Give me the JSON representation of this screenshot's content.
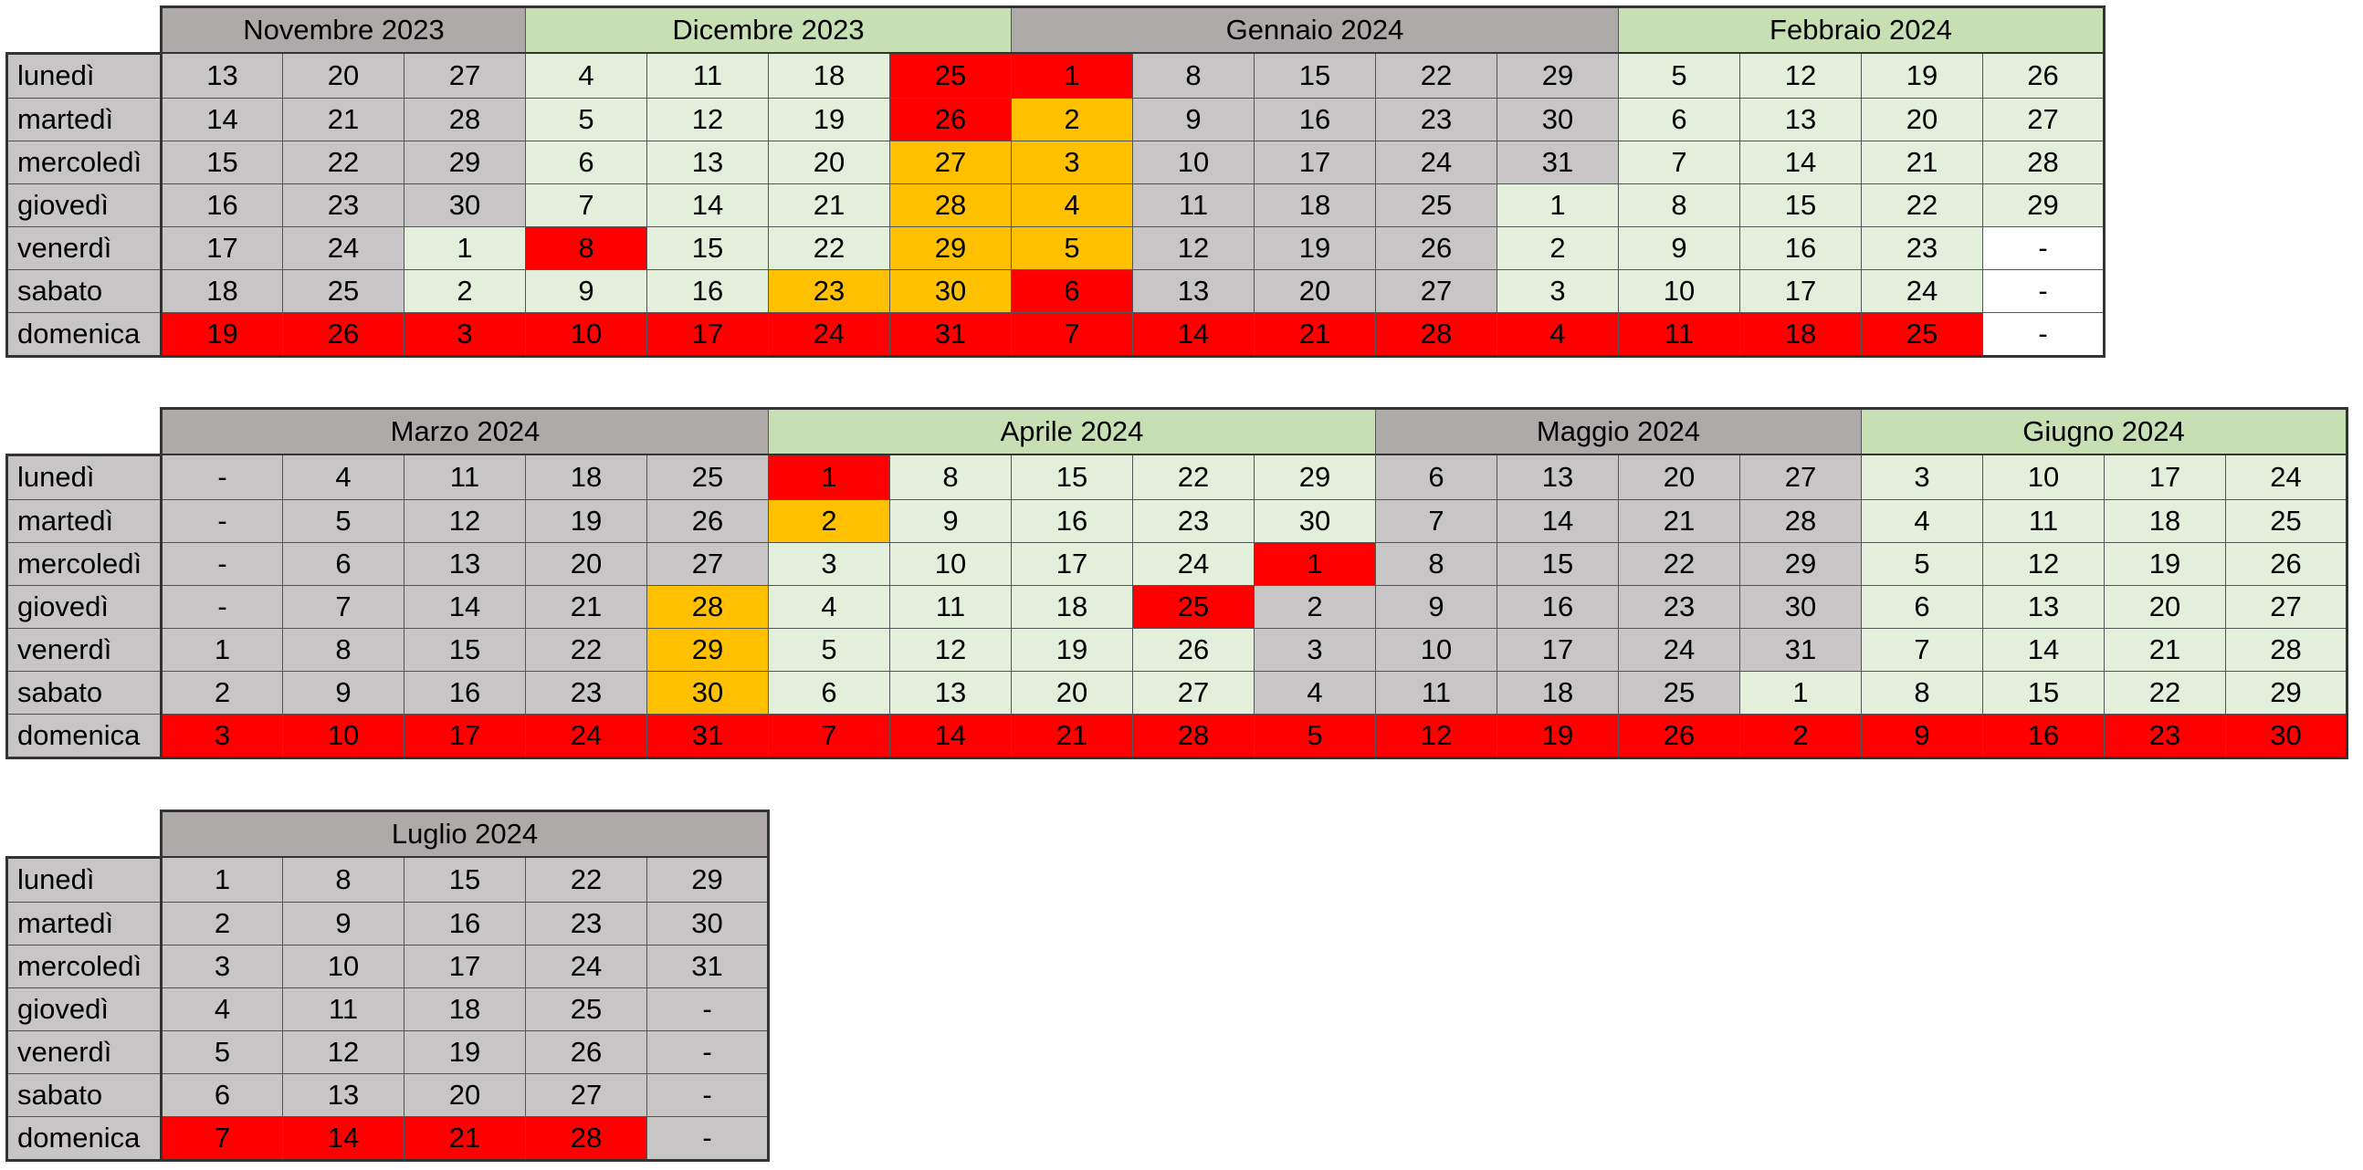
{
  "colors": {
    "month_header_gray": "#aeaaaa",
    "month_header_green": "#c6e0b4",
    "cell_gray": "#c7c5c6",
    "cell_green": "#e2efda",
    "holiday_red": "#ff0000",
    "vacation_orange": "#ffc000",
    "empty_white": "#ffffff"
  },
  "day_labels": [
    "lunedì",
    "martedì",
    "mercoledì",
    "giovedì",
    "venerdì",
    "sabato",
    "domenica"
  ],
  "tables": [
    {
      "id": "table-1",
      "months": [
        {
          "name": "Novembre 2023",
          "theme": "gray",
          "rows": [
            [
              "13",
              "20",
              "27"
            ],
            [
              "14",
              "21",
              "28"
            ],
            [
              "15",
              "22",
              "29"
            ],
            [
              "16",
              "23",
              "30"
            ],
            [
              "17",
              "24",
              "1"
            ],
            [
              "18",
              "25",
              "2"
            ],
            [
              "19",
              "26",
              "3"
            ]
          ],
          "colors": [
            [
              "",
              "",
              ""
            ],
            [
              "",
              "",
              ""
            ],
            [
              "",
              "",
              ""
            ],
            [
              "",
              "",
              ""
            ],
            [
              "",
              "",
              "green"
            ],
            [
              "",
              "",
              "green"
            ],
            [
              "red",
              "red",
              "red"
            ]
          ]
        },
        {
          "name": "Dicembre 2023",
          "theme": "green",
          "rows": [
            [
              "4",
              "11",
              "18",
              "25"
            ],
            [
              "5",
              "12",
              "19",
              "26"
            ],
            [
              "6",
              "13",
              "20",
              "27"
            ],
            [
              "7",
              "14",
              "21",
              "28"
            ],
            [
              "8",
              "15",
              "22",
              "29"
            ],
            [
              "9",
              "16",
              "23",
              "30"
            ],
            [
              "10",
              "17",
              "24",
              "31"
            ]
          ],
          "colors": [
            [
              "",
              "",
              "",
              "red"
            ],
            [
              "",
              "",
              "",
              "red"
            ],
            [
              "",
              "",
              "",
              "orange"
            ],
            [
              "",
              "",
              "",
              "orange"
            ],
            [
              "red",
              "",
              "",
              "orange"
            ],
            [
              "",
              "",
              "orange",
              "orange"
            ],
            [
              "red",
              "red",
              "red",
              "red"
            ]
          ]
        },
        {
          "name": "Gennaio 2024",
          "theme": "gray",
          "rows": [
            [
              "1",
              "8",
              "15",
              "22",
              "29"
            ],
            [
              "2",
              "9",
              "16",
              "23",
              "30"
            ],
            [
              "3",
              "10",
              "17",
              "24",
              "31"
            ],
            [
              "4",
              "11",
              "18",
              "25",
              "1"
            ],
            [
              "5",
              "12",
              "19",
              "26",
              "2"
            ],
            [
              "6",
              "13",
              "20",
              "27",
              "3"
            ],
            [
              "7",
              "14",
              "21",
              "28",
              "4"
            ]
          ],
          "colors": [
            [
              "red",
              "",
              "",
              "",
              ""
            ],
            [
              "orange",
              "",
              "",
              "",
              ""
            ],
            [
              "orange",
              "",
              "",
              "",
              ""
            ],
            [
              "orange",
              "",
              "",
              "",
              "green"
            ],
            [
              "orange",
              "",
              "",
              "",
              "green"
            ],
            [
              "red",
              "",
              "",
              "",
              "green"
            ],
            [
              "red",
              "red",
              "red",
              "red",
              "red"
            ]
          ]
        },
        {
          "name": "Febbraio 2024",
          "theme": "green",
          "rows": [
            [
              "5",
              "12",
              "19",
              "26"
            ],
            [
              "6",
              "13",
              "20",
              "27"
            ],
            [
              "7",
              "14",
              "21",
              "28"
            ],
            [
              "8",
              "15",
              "22",
              "29"
            ],
            [
              "9",
              "16",
              "23",
              "-"
            ],
            [
              "10",
              "17",
              "24",
              "-"
            ],
            [
              "11",
              "18",
              "25",
              "-"
            ]
          ],
          "colors": [
            [
              "",
              "",
              "",
              ""
            ],
            [
              "",
              "",
              "",
              ""
            ],
            [
              "",
              "",
              "",
              ""
            ],
            [
              "",
              "",
              "",
              ""
            ],
            [
              "",
              "",
              "",
              "white"
            ],
            [
              "",
              "",
              "",
              "white"
            ],
            [
              "red",
              "red",
              "red",
              "white"
            ]
          ]
        }
      ]
    },
    {
      "id": "table-2",
      "months": [
        {
          "name": "Marzo 2024",
          "theme": "gray",
          "rows": [
            [
              "-",
              "4",
              "11",
              "18",
              "25"
            ],
            [
              "-",
              "5",
              "12",
              "19",
              "26"
            ],
            [
              "-",
              "6",
              "13",
              "20",
              "27"
            ],
            [
              "-",
              "7",
              "14",
              "21",
              "28"
            ],
            [
              "1",
              "8",
              "15",
              "22",
              "29"
            ],
            [
              "2",
              "9",
              "16",
              "23",
              "30"
            ],
            [
              "3",
              "10",
              "17",
              "24",
              "31"
            ]
          ],
          "colors": [
            [
              "",
              "",
              "",
              "",
              ""
            ],
            [
              "",
              "",
              "",
              "",
              ""
            ],
            [
              "",
              "",
              "",
              "",
              ""
            ],
            [
              "",
              "",
              "",
              "",
              "orange"
            ],
            [
              "",
              "",
              "",
              "",
              "orange"
            ],
            [
              "",
              "",
              "",
              "",
              "orange"
            ],
            [
              "red",
              "red",
              "red",
              "red",
              "red"
            ]
          ]
        },
        {
          "name": "Aprile 2024",
          "theme": "green",
          "rows": [
            [
              "1",
              "8",
              "15",
              "22",
              "29"
            ],
            [
              "2",
              "9",
              "16",
              "23",
              "30"
            ],
            [
              "3",
              "10",
              "17",
              "24",
              "1"
            ],
            [
              "4",
              "11",
              "18",
              "25",
              "2"
            ],
            [
              "5",
              "12",
              "19",
              "26",
              "3"
            ],
            [
              "6",
              "13",
              "20",
              "27",
              "4"
            ],
            [
              "7",
              "14",
              "21",
              "28",
              "5"
            ]
          ],
          "colors": [
            [
              "red",
              "",
              "",
              "",
              ""
            ],
            [
              "orange",
              "",
              "",
              "",
              ""
            ],
            [
              "",
              "",
              "",
              "",
              "red"
            ],
            [
              "",
              "",
              "",
              "red",
              "gray"
            ],
            [
              "",
              "",
              "",
              "",
              "gray"
            ],
            [
              "",
              "",
              "",
              "",
              "gray"
            ],
            [
              "red",
              "red",
              "red",
              "red",
              "red"
            ]
          ]
        },
        {
          "name": "Maggio 2024",
          "theme": "gray",
          "rows": [
            [
              "6",
              "13",
              "20",
              "27"
            ],
            [
              "7",
              "14",
              "21",
              "28"
            ],
            [
              "8",
              "15",
              "22",
              "29"
            ],
            [
              "9",
              "16",
              "23",
              "30"
            ],
            [
              "10",
              "17",
              "24",
              "31"
            ],
            [
              "11",
              "18",
              "25",
              "1"
            ],
            [
              "12",
              "19",
              "26",
              "2"
            ]
          ],
          "colors": [
            [
              "",
              "",
              "",
              ""
            ],
            [
              "",
              "",
              "",
              ""
            ],
            [
              "",
              "",
              "",
              ""
            ],
            [
              "",
              "",
              "",
              ""
            ],
            [
              "",
              "",
              "",
              ""
            ],
            [
              "",
              "",
              "",
              "green"
            ],
            [
              "red",
              "red",
              "red",
              "red"
            ]
          ]
        },
        {
          "name": "Giugno 2024",
          "theme": "green",
          "rows": [
            [
              "3",
              "10",
              "17",
              "24"
            ],
            [
              "4",
              "11",
              "18",
              "25"
            ],
            [
              "5",
              "12",
              "19",
              "26"
            ],
            [
              "6",
              "13",
              "20",
              "27"
            ],
            [
              "7",
              "14",
              "21",
              "28"
            ],
            [
              "8",
              "15",
              "22",
              "29"
            ],
            [
              "9",
              "16",
              "23",
              "30"
            ]
          ],
          "colors": [
            [
              "",
              "",
              "",
              ""
            ],
            [
              "",
              "",
              "",
              ""
            ],
            [
              "",
              "",
              "",
              ""
            ],
            [
              "",
              "",
              "",
              ""
            ],
            [
              "",
              "",
              "",
              ""
            ],
            [
              "",
              "",
              "",
              ""
            ],
            [
              "red",
              "red",
              "red",
              "red"
            ]
          ]
        }
      ]
    },
    {
      "id": "table-3",
      "months": [
        {
          "name": "Luglio 2024",
          "theme": "gray",
          "rows": [
            [
              "1",
              "8",
              "15",
              "22",
              "29"
            ],
            [
              "2",
              "9",
              "16",
              "23",
              "30"
            ],
            [
              "3",
              "10",
              "17",
              "24",
              "31"
            ],
            [
              "4",
              "11",
              "18",
              "25",
              "-"
            ],
            [
              "5",
              "12",
              "19",
              "26",
              "-"
            ],
            [
              "6",
              "13",
              "20",
              "27",
              "-"
            ],
            [
              "7",
              "14",
              "21",
              "28",
              "-"
            ]
          ],
          "colors": [
            [
              "",
              "",
              "",
              "",
              ""
            ],
            [
              "",
              "",
              "",
              "",
              ""
            ],
            [
              "",
              "",
              "",
              "",
              ""
            ],
            [
              "",
              "",
              "",
              "",
              ""
            ],
            [
              "",
              "",
              "",
              "",
              ""
            ],
            [
              "",
              "",
              "",
              "",
              ""
            ],
            [
              "red",
              "red",
              "red",
              "red",
              ""
            ]
          ]
        }
      ]
    }
  ]
}
